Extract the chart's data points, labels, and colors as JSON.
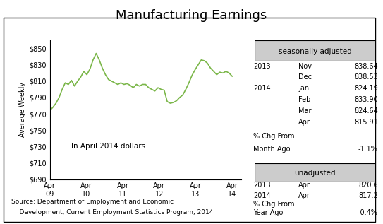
{
  "title": "Manufacturing Earnings",
  "ylabel": "Average Weekly",
  "ylim": [
    690,
    860
  ],
  "yticks": [
    690,
    710,
    730,
    750,
    770,
    790,
    810,
    830,
    850
  ],
  "ytick_labels": [
    "$690",
    "$710",
    "$730",
    "$750",
    "$770",
    "$790",
    "$810",
    "$830",
    "$850"
  ],
  "xtick_labels": [
    "Apr\n09",
    "Apr\n10",
    "Apr\n11",
    "Apr\n12",
    "Apr\n13",
    "Apr\n14"
  ],
  "line_color": "#7ab648",
  "annotation": "In April 2014 dollars",
  "source_line1": "Source: Department of Employment and Economic",
  "source_line2": "    Development, Current Employment Statistics Program, 2014",
  "seasonally_adjusted_label": "seasonally adjusted",
  "sa_data": [
    [
      "2013",
      "Nov",
      "838.64"
    ],
    [
      "",
      "Dec",
      "838.53"
    ],
    [
      "2014",
      "Jan",
      "824.19"
    ],
    [
      "",
      "Feb",
      "833.90"
    ],
    [
      "",
      "Mar",
      "824.64"
    ],
    [
      "",
      "Apr",
      "815.91"
    ]
  ],
  "sa_pct_label1": "% Chg From",
  "sa_pct_label2": "Month Ago",
  "sa_pct_value": "-1.1%",
  "unadjusted_label": "unadjusted",
  "ua_data": [
    [
      "2013",
      "Apr",
      "820.6"
    ],
    [
      "2014",
      "Apr",
      "817.2"
    ]
  ],
  "ua_pct_label1": "% Chg From",
  "ua_pct_label2": "Year Ago",
  "ua_pct_value": "-0.4%",
  "line_data_y": [
    774,
    778,
    783,
    790,
    800,
    808,
    806,
    811,
    804,
    810,
    815,
    822,
    818,
    825,
    836,
    844,
    836,
    826,
    818,
    812,
    810,
    808,
    806,
    808,
    806,
    807,
    805,
    802,
    806,
    804,
    806,
    806,
    802,
    800,
    798,
    802,
    800,
    799,
    785,
    783,
    784,
    786,
    790,
    793,
    800,
    808,
    817,
    824,
    830,
    836,
    835,
    832,
    826,
    822,
    818,
    821,
    820,
    822,
    820,
    816
  ]
}
